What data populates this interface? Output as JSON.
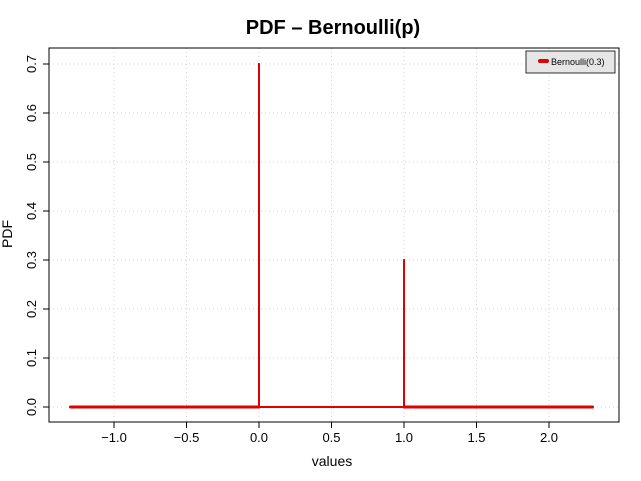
{
  "chart_data": {
    "type": "line",
    "title": "PDF – Bernoulli(p)",
    "xlabel": "values",
    "ylabel": "PDF",
    "xlim": [
      -1.3,
      2.3
    ],
    "ylim": [
      0,
      0.7
    ],
    "x_ticks": [
      -1.0,
      -0.5,
      0.0,
      0.5,
      1.0,
      1.5,
      2.0
    ],
    "x_tick_labels": [
      "−1.0",
      "−0.5",
      "0.0",
      "0.5",
      "1.0",
      "1.5",
      "2.0"
    ],
    "y_ticks": [
      0.0,
      0.1,
      0.2,
      0.3,
      0.4,
      0.5,
      0.6,
      0.7
    ],
    "y_tick_labels": [
      "0.0",
      "0.1",
      "0.2",
      "0.3",
      "0.4",
      "0.5",
      "0.6",
      "0.7"
    ],
    "grid": true,
    "legend_position": "top-right",
    "series": [
      {
        "name": "Bernoulli(0.3)",
        "color": "#e00000",
        "x": [
          -1.3,
          0.0,
          0.0,
          0.0,
          1.0,
          1.0,
          1.0,
          2.3
        ],
        "y": [
          0.0,
          0.0,
          0.7,
          0.0,
          0.0,
          0.3,
          0.0,
          0.0
        ]
      }
    ]
  }
}
